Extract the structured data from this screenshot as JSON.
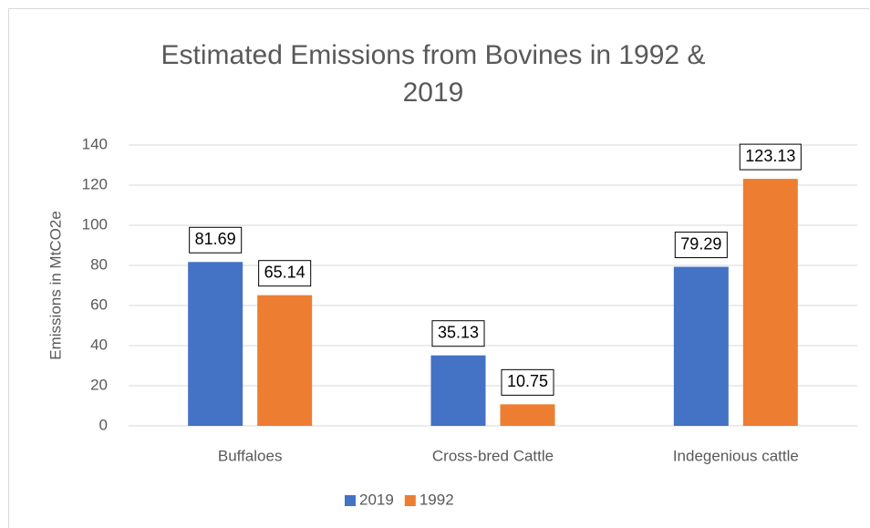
{
  "chart_data": {
    "type": "bar",
    "title": "Estimated Emissions from Bovines in 1992 & 2019",
    "y_axis_label": "Emissions in MtCO2e",
    "categories": [
      "Buffaloes",
      "Cross-bred Cattle",
      "Indegenious cattle"
    ],
    "series": [
      {
        "name": "2019",
        "color": "#4472c4",
        "values": [
          81.69,
          35.13,
          79.29
        ]
      },
      {
        "name": "1992",
        "color": "#ed7d31",
        "values": [
          65.14,
          10.75,
          123.13
        ]
      }
    ],
    "ylim": [
      0,
      140
    ],
    "yticks": [
      0,
      20,
      40,
      60,
      80,
      100,
      120,
      140
    ],
    "grid": true,
    "legend": "bottom"
  }
}
